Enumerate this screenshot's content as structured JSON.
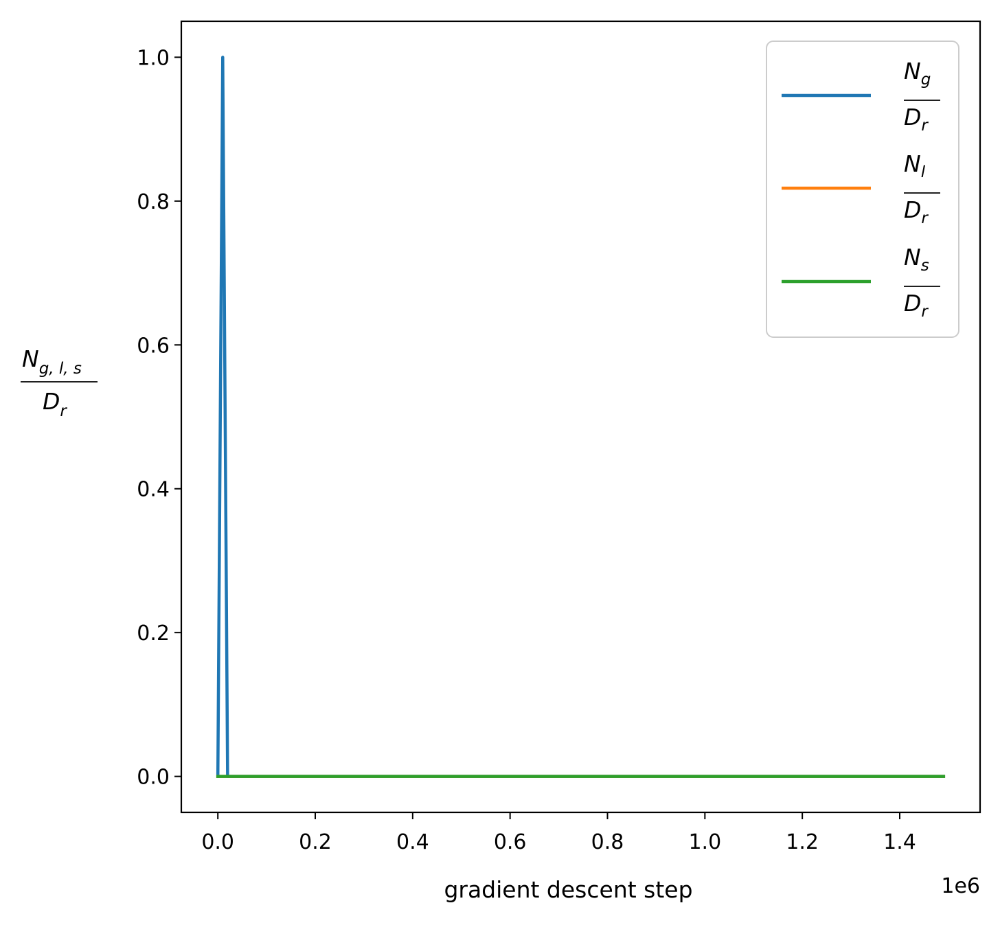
{
  "chart_data": {
    "type": "line",
    "xlabel": "gradient descent step",
    "x_offset_label": "1e6",
    "x_scale": 1000000,
    "ylabel": {
      "num_main": "N",
      "num_sub": "g, l, s",
      "den_main": "D",
      "den_sub": "r"
    },
    "xlim": [
      -75000,
      1565000
    ],
    "ylim": [
      -0.05,
      1.05
    ],
    "x_ticks": [
      0,
      200000,
      400000,
      600000,
      800000,
      1000000,
      1200000,
      1400000
    ],
    "x_tick_labels": [
      "0.0",
      "0.2",
      "0.4",
      "0.6",
      "0.8",
      "1.0",
      "1.2",
      "1.4"
    ],
    "y_ticks": [
      0.0,
      0.2,
      0.4,
      0.6,
      0.8,
      1.0
    ],
    "y_tick_labels": [
      "0.0",
      "0.2",
      "0.4",
      "0.6",
      "0.8",
      "1.0"
    ],
    "grid": false,
    "legend_position": "top-right",
    "series": [
      {
        "name": {
          "num_main": "N",
          "num_sub": "g",
          "den_main": "D",
          "den_sub": "r"
        },
        "color": "#1f77b4",
        "x": [
          0,
          10000,
          20000,
          1490000
        ],
        "y": [
          0,
          1,
          0,
          0
        ]
      },
      {
        "name": {
          "num_main": "N",
          "num_sub": "l",
          "den_main": "D",
          "den_sub": "r"
        },
        "color": "#ff7f0e",
        "x": [
          0,
          1490000
        ],
        "y": [
          0,
          0
        ]
      },
      {
        "name": {
          "num_main": "N",
          "num_sub": "s",
          "den_main": "D",
          "den_sub": "r"
        },
        "color": "#2ca02c",
        "x": [
          0,
          1490000
        ],
        "y": [
          0,
          0
        ]
      }
    ]
  }
}
